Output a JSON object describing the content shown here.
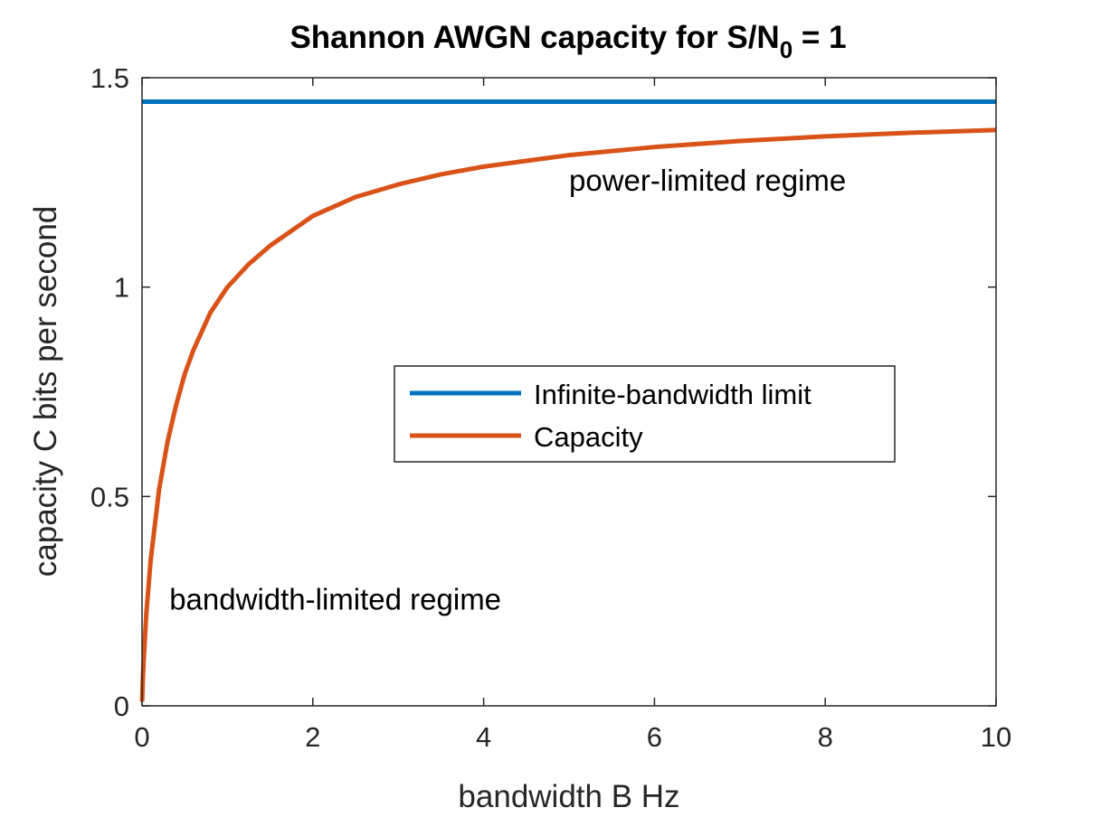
{
  "chart_data": {
    "type": "line",
    "title": "Shannon AWGN capacity for S/N",
    "title_subscript": "0",
    "title_suffix": " = 1",
    "xlabel": "bandwidth B Hz",
    "ylabel": "capacity C bits per second",
    "xlim": [
      0,
      10
    ],
    "ylim": [
      0,
      1.5
    ],
    "xticks": [
      0,
      2,
      4,
      6,
      8,
      10
    ],
    "xtick_labels": [
      "0",
      "2",
      "4",
      "6",
      "8",
      "10"
    ],
    "yticks": [
      0,
      0.5,
      1,
      1.5
    ],
    "ytick_labels": [
      "0",
      "0.5",
      "1",
      "1.5"
    ],
    "grid": false,
    "legend_placement": "center-right",
    "series": [
      {
        "name": "Infinite-bandwidth limit",
        "color": "#0072BD",
        "x": [
          0,
          10
        ],
        "y": [
          1.4427,
          1.4427
        ]
      },
      {
        "name": "Capacity",
        "color": "#D95319",
        "x": [
          0.001,
          0.01,
          0.02,
          0.05,
          0.1,
          0.2,
          0.3,
          0.4,
          0.5,
          0.6,
          0.8,
          1.0,
          1.25,
          1.5,
          2.0,
          2.5,
          3.0,
          3.5,
          4.0,
          5.0,
          6.0,
          7.0,
          8.0,
          9.0,
          10.0
        ],
        "y": [
          0.00998,
          0.0666,
          0.1113,
          0.2196,
          0.3459,
          0.517,
          0.6323,
          0.7187,
          0.7925,
          0.8488,
          0.939,
          1.0,
          1.0549,
          1.0989,
          1.1699,
          1.2151,
          1.2451,
          1.2692,
          1.2877,
          1.3152,
          1.3345,
          1.349,
          1.3599,
          1.3686,
          1.375
        ]
      }
    ],
    "annotations": [
      {
        "text": "power-limited regime",
        "x": 5.0,
        "y": 1.23
      },
      {
        "text": "bandwidth-limited regime",
        "x": 0.32,
        "y": 0.23
      }
    ]
  }
}
